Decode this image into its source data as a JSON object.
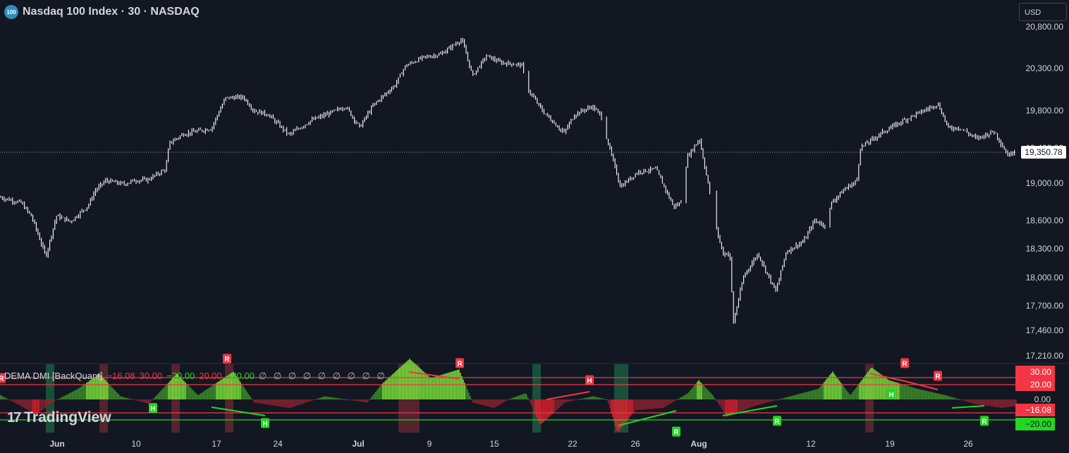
{
  "header": {
    "symbol_badge": "100",
    "title": "Nasdaq 100 Index · 30 · NASDAQ"
  },
  "currency_button": "USD",
  "last_price_label": "19,350.78",
  "chart_data": [
    {
      "type": "candlestick",
      "title": "Nasdaq 100 Index · 30 · NASDAQ",
      "ylim": [
        17210,
        20900
      ],
      "y_ticks": [
        "20,800.00",
        "20,300.00",
        "19,800.00",
        "19,400.00",
        "19,000.00",
        "18,600.00",
        "18,300.00",
        "18,000.00",
        "17,700.00",
        "17,460.00",
        "17,210.00"
      ],
      "y_tick_values": [
        20800,
        20300,
        19800,
        19400,
        19000,
        18600,
        18300,
        18000,
        17700,
        17460,
        17210
      ],
      "x_ticks": [
        "Jun",
        "10",
        "17",
        "24",
        "Jul",
        "9",
        "15",
        "22",
        "26",
        "Aug",
        "12",
        "19",
        "26"
      ],
      "last_price": 19350.78,
      "price_path": [
        [
          0,
          18850
        ],
        [
          30,
          18790
        ],
        [
          45,
          18640
        ],
        [
          65,
          18220
        ],
        [
          80,
          18650
        ],
        [
          100,
          18590
        ],
        [
          125,
          18760
        ],
        [
          135,
          18920
        ],
        [
          150,
          19030
        ],
        [
          175,
          18990
        ],
        [
          190,
          19030
        ],
        [
          210,
          19040
        ],
        [
          235,
          19160
        ],
        [
          240,
          19450
        ],
        [
          260,
          19550
        ],
        [
          300,
          19610
        ],
        [
          320,
          19950
        ],
        [
          345,
          19960
        ],
        [
          360,
          19800
        ],
        [
          380,
          19760
        ],
        [
          410,
          19540
        ],
        [
          440,
          19690
        ],
        [
          470,
          19780
        ],
        [
          490,
          19850
        ],
        [
          510,
          19620
        ],
        [
          530,
          19870
        ],
        [
          560,
          20100
        ],
        [
          575,
          20330
        ],
        [
          600,
          20430
        ],
        [
          625,
          20470
        ],
        [
          655,
          20650
        ],
        [
          670,
          20210
        ],
        [
          690,
          20450
        ],
        [
          710,
          20370
        ],
        [
          740,
          20340
        ],
        [
          748,
          20060
        ],
        [
          770,
          19790
        ],
        [
          800,
          19560
        ],
        [
          815,
          19760
        ],
        [
          840,
          19850
        ],
        [
          855,
          19720
        ],
        [
          860,
          19520
        ],
        [
          880,
          18960
        ],
        [
          905,
          19130
        ],
        [
          930,
          19160
        ],
        [
          955,
          18750
        ],
        [
          965,
          18780
        ],
        [
          975,
          19300
        ],
        [
          992,
          19500
        ],
        [
          1005,
          18960
        ],
        [
          1015,
          18550
        ],
        [
          1025,
          18250
        ],
        [
          1035,
          18250
        ],
        [
          1040,
          17530
        ],
        [
          1055,
          18020
        ],
        [
          1075,
          18250
        ],
        [
          1100,
          17850
        ],
        [
          1115,
          18270
        ],
        [
          1140,
          18380
        ],
        [
          1155,
          18600
        ],
        [
          1170,
          18550
        ],
        [
          1180,
          18800
        ],
        [
          1200,
          18950
        ],
        [
          1215,
          19020
        ],
        [
          1220,
          19400
        ],
        [
          1250,
          19560
        ],
        [
          1280,
          19690
        ],
        [
          1310,
          19800
        ],
        [
          1330,
          19880
        ],
        [
          1345,
          19610
        ],
        [
          1360,
          19620
        ],
        [
          1385,
          19500
        ],
        [
          1410,
          19580
        ],
        [
          1430,
          19310
        ],
        [
          1440,
          19390
        ]
      ]
    },
    {
      "type": "bar",
      "title": "DEMA DMI [BackQuant]",
      "legend_values": [
        "−16.08",
        "30.00",
        "−20.00",
        "20.00",
        "−30.00",
        "∅ ∅ ∅ ∅ ∅ ∅ ∅ ∅ ∅"
      ],
      "ylim": [
        -35,
        42
      ],
      "y_ticks": [
        "30.00",
        "20.00",
        "0.00"
      ],
      "levels": [
        {
          "label": "30.00",
          "value": 30,
          "color": "#f23645"
        },
        {
          "label": "20.00",
          "value": 20,
          "color": "#f23645"
        },
        {
          "label": "−16.08",
          "value": -16.08,
          "color": "#f23645"
        },
        {
          "label": "−20.00",
          "value": -20,
          "color": "#22d622"
        }
      ],
      "oscillator_path": [
        [
          0,
          4
        ],
        [
          20,
          -3
        ],
        [
          50,
          -14
        ],
        [
          75,
          -2
        ],
        [
          110,
          10
        ],
        [
          140,
          24
        ],
        [
          170,
          3
        ],
        [
          210,
          -4
        ],
        [
          250,
          24
        ],
        [
          280,
          4
        ],
        [
          330,
          26
        ],
        [
          360,
          -3
        ],
        [
          410,
          -8
        ],
        [
          460,
          3
        ],
        [
          520,
          -3
        ],
        [
          540,
          14
        ],
        [
          580,
          38
        ],
        [
          610,
          20
        ],
        [
          650,
          28
        ],
        [
          670,
          -3
        ],
        [
          700,
          -8
        ],
        [
          720,
          0
        ],
        [
          745,
          6
        ],
        [
          765,
          -24
        ],
        [
          800,
          -3
        ],
        [
          840,
          3
        ],
        [
          860,
          0
        ],
        [
          875,
          -31
        ],
        [
          900,
          -10
        ],
        [
          940,
          -8
        ],
        [
          975,
          6
        ],
        [
          990,
          18
        ],
        [
          1010,
          4
        ],
        [
          1030,
          -16
        ],
        [
          1070,
          -6
        ],
        [
          1120,
          3
        ],
        [
          1160,
          10
        ],
        [
          1180,
          26
        ],
        [
          1205,
          4
        ],
        [
          1235,
          30
        ],
        [
          1260,
          18
        ],
        [
          1300,
          10
        ],
        [
          1340,
          4
        ],
        [
          1380,
          -4
        ],
        [
          1420,
          -8
        ],
        [
          1440,
          -6
        ]
      ],
      "signal_zones": [
        {
          "x": 71,
          "color": "green"
        },
        {
          "x": 147,
          "color": "red"
        },
        {
          "x": 249,
          "color": "red"
        },
        {
          "x": 325,
          "color": "red"
        },
        {
          "x": 580,
          "color": "red"
        },
        {
          "x": 761,
          "color": "green"
        },
        {
          "x": 877,
          "color": "green"
        },
        {
          "x": 1233,
          "color": "red"
        }
      ],
      "divergence_labels": [
        {
          "text": "R",
          "x": 2,
          "y": 20,
          "color": "red"
        },
        {
          "text": "R",
          "x": 322,
          "y": 38,
          "color": "red"
        },
        {
          "text": "R",
          "x": 652,
          "y": 34,
          "color": "red"
        },
        {
          "text": "H",
          "x": 836,
          "y": 18,
          "color": "red"
        },
        {
          "text": "R",
          "x": 1283,
          "y": 34,
          "color": "red"
        },
        {
          "text": "R",
          "x": 1330,
          "y": 22,
          "color": "red"
        },
        {
          "text": "H",
          "x": 217,
          "y": -8,
          "color": "green"
        },
        {
          "text": "H",
          "x": 376,
          "y": -22,
          "color": "green"
        },
        {
          "text": "R",
          "x": 959,
          "y": -30,
          "color": "green"
        },
        {
          "text": "R",
          "x": 1102,
          "y": -20,
          "color": "green"
        },
        {
          "text": "H",
          "x": 1264,
          "y": 5,
          "color": "green"
        },
        {
          "text": "R",
          "x": 1396,
          "y": -20,
          "color": "green"
        }
      ]
    }
  ],
  "watermark": "TradingView",
  "colors": {
    "background": "#131722",
    "candle": "#ffffff",
    "bull": "#22d622",
    "bear": "#f23645",
    "axis_text": "#d1d4dc"
  }
}
